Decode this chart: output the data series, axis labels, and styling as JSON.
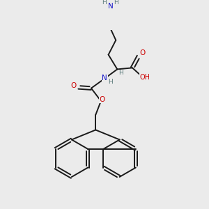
{
  "bg_color": "#ebebeb",
  "atom_color_N": "#1414c8",
  "atom_color_O": "#cc0000",
  "atom_color_H": "#5a7a7a",
  "bond_color": "#1a1a1a",
  "bond_width": 1.4,
  "fig_size": [
    3.0,
    3.0
  ],
  "dpi": 100,
  "xlim": [
    0,
    10
  ],
  "ylim": [
    0,
    10
  ]
}
